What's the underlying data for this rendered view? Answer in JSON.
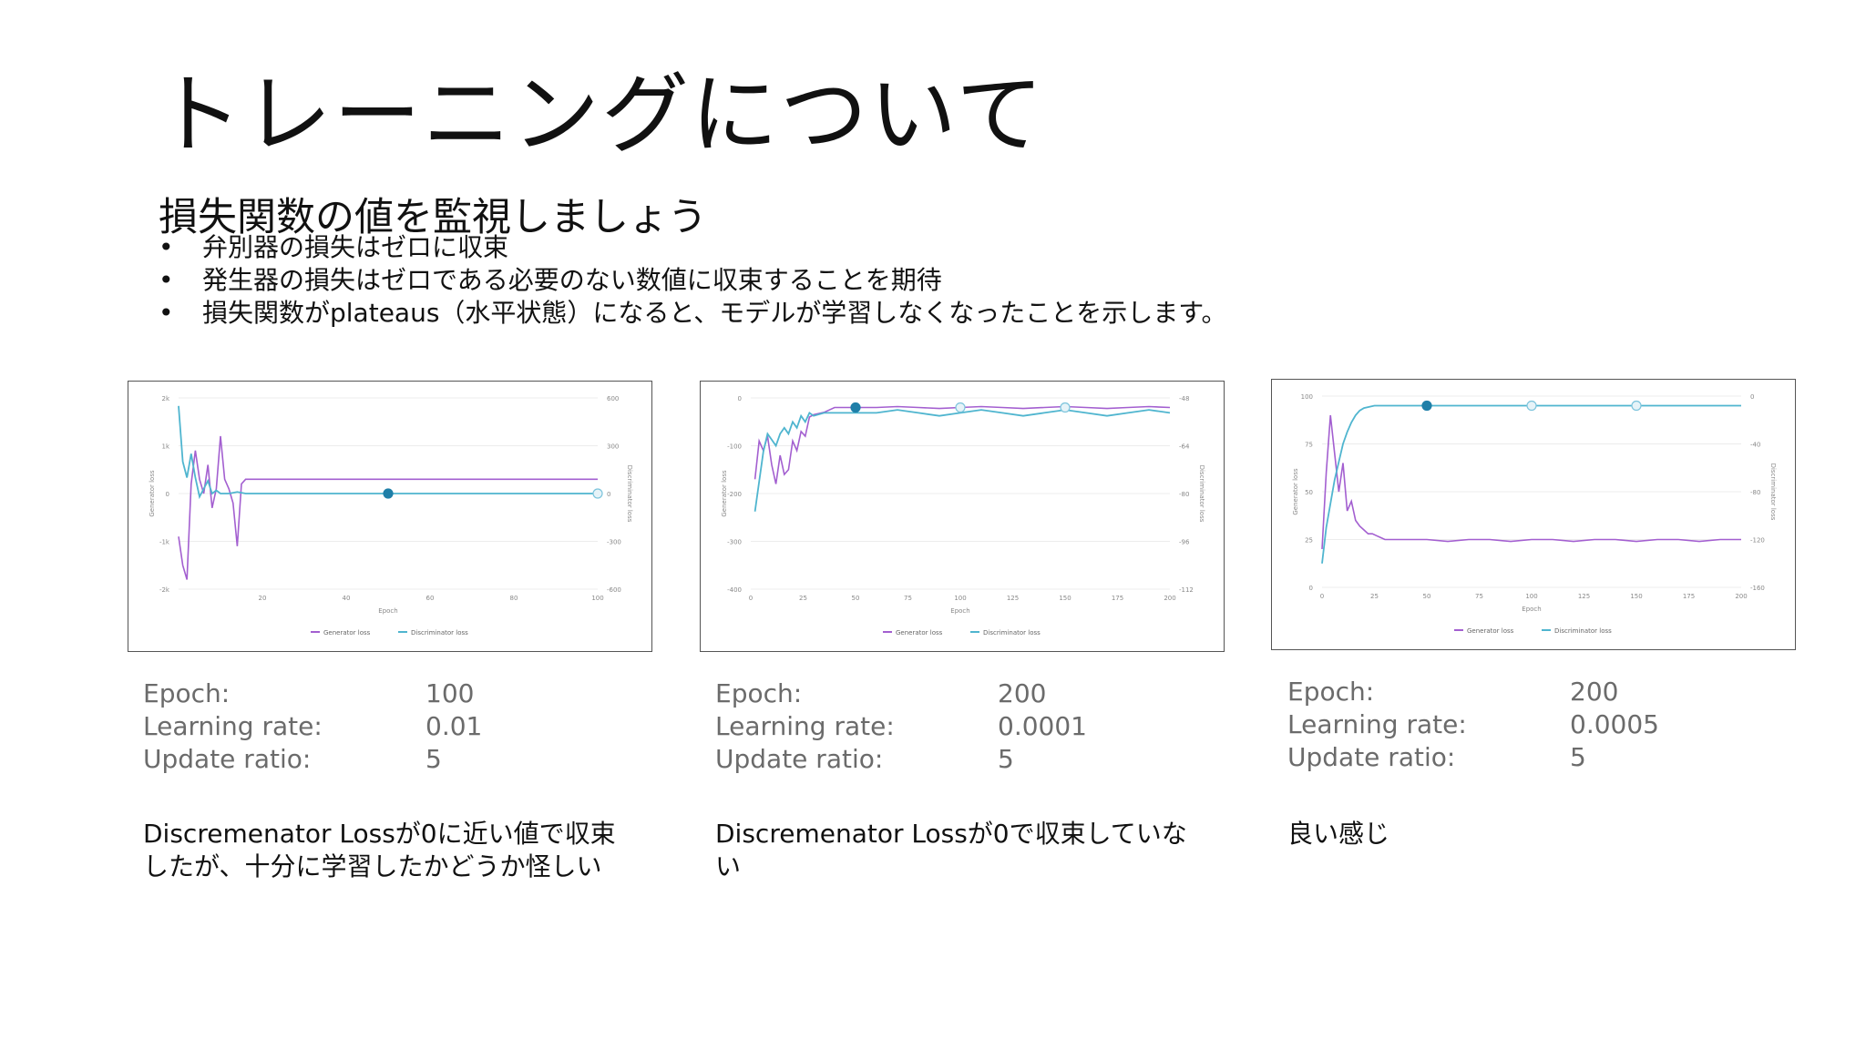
{
  "slide": {
    "title": "トレーニングについて",
    "subtitle": "損失関数の値を監視しましょう",
    "bullet_marker": "•",
    "bullets": [
      "弁別器の損失はゼロに収束",
      "発生器の損失はゼロである必要のない数値に収束することを期待",
      "損失関数がplateaus（水平状態）になると、モデルが学習しなくなったことを示します。"
    ]
  },
  "param_labels": {
    "epoch": "Epoch:",
    "learning_rate": "Learning rate:",
    "update_ratio": "Update ratio:"
  },
  "panels": [
    {
      "epoch": "100",
      "learning_rate": "0.01",
      "update_ratio": "5",
      "note_lines": [
        "Discremenator Lossが0に近い値で収束",
        "したが、十分に学習したかどうか怪しい"
      ]
    },
    {
      "epoch": "200",
      "learning_rate": "0.0001",
      "update_ratio": "5",
      "note_lines": [
        "Discremenator Lossが0で収束していな",
        "い"
      ]
    },
    {
      "epoch": "200",
      "learning_rate": "0.0005",
      "update_ratio": "5",
      "note_lines": [
        "良い感じ",
        ""
      ]
    }
  ],
  "chart_data": [
    {
      "type": "line",
      "xlabel": "Epoch",
      "ylabel": "Generator loss",
      "y2label": "Discriminator loss",
      "xlim": [
        0,
        100
      ],
      "ylim": [
        -2000,
        2000
      ],
      "y2lim": [
        -600,
        600
      ],
      "x_ticks": [
        "20",
        "40",
        "60",
        "80",
        "100"
      ],
      "y_ticks": [
        "2k",
        "1k",
        "0",
        "-1k",
        "-2k"
      ],
      "y2_ticks": [
        "600",
        "300",
        "0",
        "-300",
        "-600"
      ],
      "legend": [
        "Generator loss",
        "Discriminator loss"
      ],
      "colors": {
        "generator": "#a35fd0",
        "discriminator": "#4fb5cf"
      },
      "series": [
        {
          "name": "Generator loss",
          "x": [
            0,
            1,
            2,
            3,
            4,
            5,
            6,
            7,
            8,
            9,
            10,
            11,
            12,
            13,
            14,
            15,
            16,
            17,
            18,
            19,
            20,
            30,
            40,
            50,
            60,
            70,
            80,
            90,
            100
          ],
          "y": [
            -900,
            -1500,
            -1800,
            200,
            900,
            300,
            0,
            600,
            -300,
            100,
            1200,
            300,
            100,
            -200,
            -1100,
            200,
            300,
            300,
            300,
            300,
            300,
            300,
            300,
            300,
            300,
            300,
            300,
            300,
            300
          ]
        },
        {
          "name": "Discriminator loss",
          "x": [
            0,
            1,
            2,
            3,
            4,
            5,
            6,
            7,
            8,
            9,
            10,
            12,
            14,
            16,
            18,
            20,
            30,
            40,
            50,
            60,
            70,
            80,
            90,
            100
          ],
          "y": [
            550,
            200,
            100,
            250,
            100,
            -20,
            30,
            80,
            0,
            20,
            0,
            0,
            10,
            0,
            0,
            0,
            0,
            0,
            0,
            0,
            0,
            0,
            0,
            0
          ]
        }
      ],
      "markers": [
        {
          "x": 50,
          "axis": "y2",
          "y": 0,
          "filled": true
        },
        {
          "x": 100,
          "axis": "y2",
          "y": 0,
          "filled": false
        }
      ]
    },
    {
      "type": "line",
      "xlabel": "Epoch",
      "ylabel": "Generator loss",
      "y2label": "Discriminator loss",
      "xlim": [
        0,
        200
      ],
      "ylim": [
        -400,
        0
      ],
      "y2lim": [
        -112,
        -48
      ],
      "x_ticks": [
        "0",
        "25",
        "50",
        "75",
        "100",
        "125",
        "150",
        "175",
        "200"
      ],
      "y_ticks": [
        "0",
        "-100",
        "-200",
        "-300",
        "-400"
      ],
      "y2_ticks": [
        "-48",
        "-64",
        "-80",
        "-96",
        "-112"
      ],
      "legend": [
        "Generator loss",
        "Discriminator loss"
      ],
      "colors": {
        "generator": "#a35fd0",
        "discriminator": "#4fb5cf"
      },
      "series": [
        {
          "name": "Generator loss",
          "x": [
            2,
            4,
            6,
            8,
            10,
            12,
            14,
            16,
            18,
            20,
            22,
            24,
            26,
            28,
            30,
            35,
            40,
            45,
            50,
            60,
            70,
            80,
            90,
            100,
            110,
            120,
            130,
            140,
            150,
            160,
            170,
            180,
            190,
            200
          ],
          "y": [
            -170,
            -90,
            -110,
            -80,
            -140,
            -180,
            -120,
            -160,
            -150,
            -90,
            -110,
            -70,
            -80,
            -40,
            -35,
            -30,
            -20,
            -20,
            -20,
            -20,
            -18,
            -20,
            -22,
            -20,
            -18,
            -20,
            -22,
            -20,
            -18,
            -20,
            -22,
            -20,
            -18,
            -20
          ]
        },
        {
          "name": "Discriminator loss",
          "x": [
            2,
            4,
            6,
            8,
            10,
            12,
            14,
            16,
            18,
            20,
            22,
            24,
            26,
            28,
            30,
            35,
            40,
            45,
            50,
            60,
            70,
            80,
            90,
            100,
            110,
            120,
            130,
            140,
            150,
            160,
            170,
            180,
            190,
            200
          ],
          "y": [
            -86,
            -76,
            -66,
            -60,
            -62,
            -64,
            -60,
            -58,
            -60,
            -56,
            -58,
            -54,
            -56,
            -53,
            -54,
            -53,
            -53,
            -53,
            -53,
            -53,
            -52,
            -53,
            -54,
            -53,
            -52,
            -53,
            -54,
            -53,
            -52,
            -53,
            -54,
            -53,
            -52,
            -53
          ]
        }
      ],
      "markers": [
        {
          "x": 50,
          "axis": "y",
          "y": -20,
          "filled": true
        },
        {
          "x": 100,
          "axis": "y",
          "y": -20,
          "filled": false
        },
        {
          "x": 150,
          "axis": "y",
          "y": -20,
          "filled": false
        }
      ]
    },
    {
      "type": "line",
      "xlabel": "Epoch",
      "ylabel": "Generator loss",
      "y2label": "Discriminator loss",
      "xlim": [
        0,
        200
      ],
      "ylim": [
        0,
        100
      ],
      "y2lim": [
        -160,
        0
      ],
      "x_ticks": [
        "0",
        "25",
        "50",
        "75",
        "100",
        "125",
        "150",
        "175",
        "200"
      ],
      "y_ticks": [
        "100",
        "75",
        "50",
        "25",
        "0"
      ],
      "y2_ticks": [
        "0",
        "-40",
        "-80",
        "-120",
        "-160"
      ],
      "legend": [
        "Generator loss",
        "Discriminator loss"
      ],
      "colors": {
        "generator": "#a35fd0",
        "discriminator": "#4fb5cf"
      },
      "series": [
        {
          "name": "Generator loss",
          "x": [
            0,
            2,
            4,
            6,
            8,
            10,
            12,
            14,
            16,
            18,
            20,
            22,
            24,
            26,
            28,
            30,
            35,
            40,
            50,
            60,
            70,
            80,
            90,
            100,
            110,
            120,
            130,
            140,
            150,
            160,
            170,
            180,
            190,
            200
          ],
          "y": [
            20,
            60,
            90,
            70,
            50,
            65,
            40,
            45,
            35,
            32,
            30,
            28,
            28,
            27,
            26,
            25,
            25,
            25,
            25,
            24,
            25,
            25,
            24,
            25,
            25,
            24,
            25,
            25,
            24,
            25,
            25,
            24,
            25,
            25
          ]
        },
        {
          "name": "Discriminator loss",
          "x": [
            0,
            2,
            4,
            6,
            8,
            10,
            12,
            14,
            16,
            18,
            20,
            25,
            30,
            35,
            40,
            50,
            60,
            70,
            80,
            90,
            100,
            110,
            120,
            130,
            140,
            150,
            160,
            170,
            180,
            190,
            200
          ],
          "y": [
            -140,
            -110,
            -90,
            -70,
            -55,
            -40,
            -30,
            -22,
            -16,
            -12,
            -10,
            -8,
            -8,
            -8,
            -8,
            -8,
            -8,
            -8,
            -8,
            -8,
            -8,
            -8,
            -8,
            -8,
            -8,
            -8,
            -8,
            -8,
            -8,
            -8,
            -8
          ]
        }
      ],
      "markers": [
        {
          "x": 50,
          "axis": "y2",
          "y": -8,
          "filled": true
        },
        {
          "x": 100,
          "axis": "y2",
          "y": -8,
          "filled": false
        },
        {
          "x": 150,
          "axis": "y2",
          "y": -8,
          "filled": false
        }
      ]
    }
  ]
}
